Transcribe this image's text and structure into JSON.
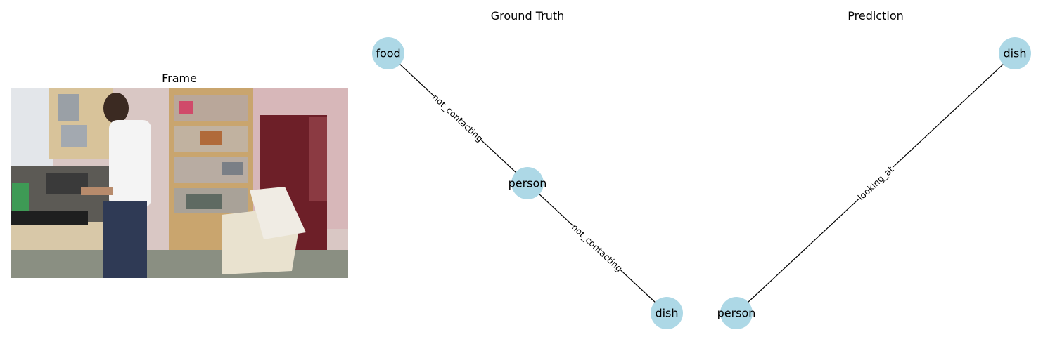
{
  "frame_panel": {
    "title": "Frame"
  },
  "ground_truth": {
    "title": "Ground Truth",
    "nodes": [
      "food",
      "person",
      "dish"
    ],
    "edges": [
      {
        "from": "food",
        "to": "person",
        "label": "not_contacting"
      },
      {
        "from": "person",
        "to": "dish",
        "label": "not_contacting"
      }
    ]
  },
  "prediction": {
    "title": "Prediction",
    "nodes": [
      "dish",
      "person"
    ],
    "edges": [
      {
        "from": "person",
        "to": "dish",
        "label": "looking_at"
      }
    ]
  },
  "colors": {
    "node_fill": "#add8e6",
    "edge": "#000000",
    "background": "#ffffff"
  }
}
